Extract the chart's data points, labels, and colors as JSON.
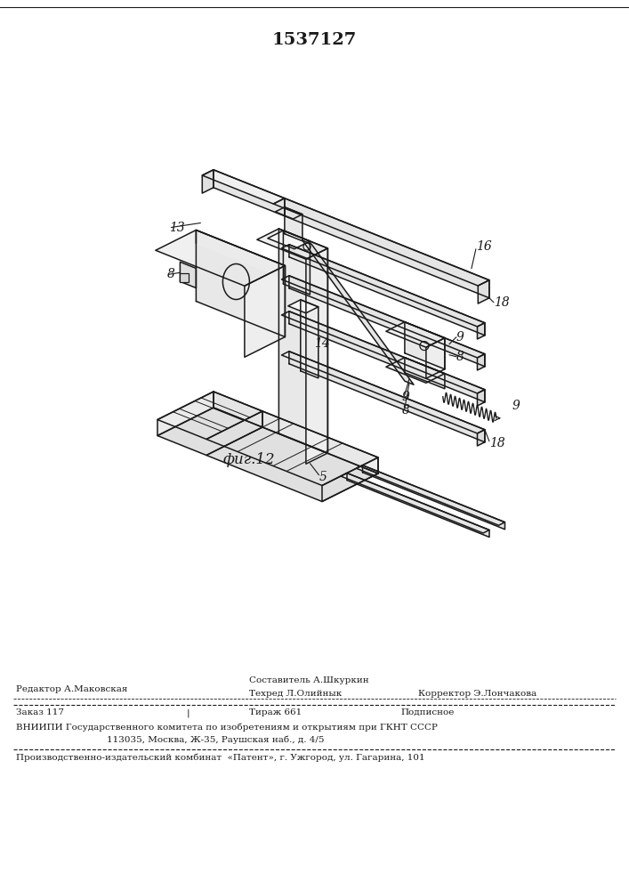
{
  "patent_number": "1537127",
  "figure_label": "фиг.12",
  "bg_color": "#ffffff",
  "line_color": "#1a1a1a",
  "lw": 1.1,
  "footer": {
    "row1_left": "Редактор А.Маковская",
    "row1_mid": "Составитель А.Шкуркин",
    "row2_mid": "Техред Л.Олийнык",
    "row2_right": "Корректор Э.Лончакова",
    "row3_left": "Заказ 117",
    "row3_sep": "|",
    "row3_mid": "Тираж 661",
    "row3_right": "Подписное",
    "row4": "ВНИИПИ Государственного комитета по изобретениям и открытиям при ГКНТ СССР",
    "row5": "113035, Москва, Ж-35, Раушская наб., д. 4/5",
    "row6": "Производственно-издательский комбинат  «Патент», г. Ужгород, ул. Гагарина, 101"
  }
}
